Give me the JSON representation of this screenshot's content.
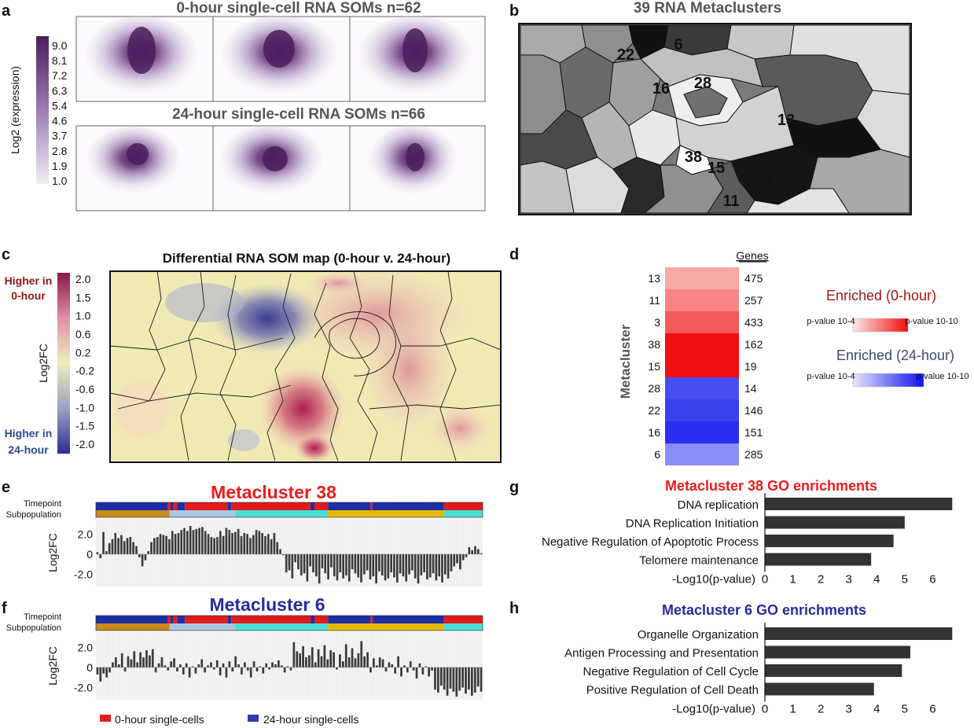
{
  "panels": {
    "a": "a",
    "b": "b",
    "c": "c",
    "d": "d",
    "e": "e",
    "f": "f",
    "g": "g",
    "h": "h"
  },
  "panel_a": {
    "title_top": "0-hour single-cell RNA SOMs n=62",
    "title_bottom": "24-hour single-cell RNA SOMs n=66",
    "scale_label": "Log2 (expression)",
    "scale_ticks": [
      "9.0",
      "8.1",
      "7.2",
      "6.3",
      "5.4",
      "4.6",
      "3.7",
      "2.8",
      "1.9",
      "1.0"
    ],
    "color_high": "#4b1d5e",
    "color_low": "#f2eef6"
  },
  "panel_b": {
    "title": "39 RNA Metaclusters",
    "labels": [
      {
        "text": "22",
        "color": "#2b86c9"
      },
      {
        "text": "6",
        "color": "#2b86c9"
      },
      {
        "text": "16",
        "color": "#2b86c9"
      },
      {
        "text": "28",
        "color": "#2b86c9"
      },
      {
        "text": "13",
        "color": "#e8461e"
      },
      {
        "text": "38",
        "color": "#e8461e"
      },
      {
        "text": "15",
        "color": "#e8461e"
      },
      {
        "text": "3",
        "color": "#e8461e"
      },
      {
        "text": "11",
        "color": "#e8461e"
      }
    ]
  },
  "panel_c": {
    "title": "Differential RNA SOM map (0-hour v. 24-hour)",
    "higher_top_1": "Higher in",
    "higher_top_2": "0-hour",
    "higher_bottom_1": "Higher in",
    "higher_bottom_2": "24-hour",
    "scale_label": "Log2FC",
    "scale_ticks": [
      "2.0",
      "1.5",
      "1.0",
      "0.6",
      "0.2",
      "-0.2",
      "-0.6",
      "-1.0",
      "-1.5",
      "-2.0"
    ],
    "color_top": "#8b1848",
    "color_mid": "#f3ecb8",
    "color_bottom": "#2c2f8e"
  },
  "chart_data": [
    {
      "type": "heatmap",
      "panel": "d",
      "ylabel": "Metacluster",
      "column_header": "Genes",
      "rows": [
        {
          "metacluster": "13",
          "genes": 475,
          "enrichment": "0-hour",
          "color": "#f9a6a6"
        },
        {
          "metacluster": "11",
          "genes": 257,
          "enrichment": "0-hour",
          "color": "#f88585"
        },
        {
          "metacluster": "3",
          "genes": 433,
          "enrichment": "0-hour",
          "color": "#f45a5a"
        },
        {
          "metacluster": "38",
          "genes": 162,
          "enrichment": "0-hour",
          "color": "#f20f0f"
        },
        {
          "metacluster": "15",
          "genes": 19,
          "enrichment": "0-hour",
          "color": "#f20f0f"
        },
        {
          "metacluster": "28",
          "genes": 14,
          "enrichment": "24-hour",
          "color": "#4a4cf2"
        },
        {
          "metacluster": "22",
          "genes": 146,
          "enrichment": "24-hour",
          "color": "#3d40ee"
        },
        {
          "metacluster": "16",
          "genes": 151,
          "enrichment": "24-hour",
          "color": "#2a2ef0"
        },
        {
          "metacluster": "6",
          "genes": 285,
          "enrichment": "24-hour",
          "color": "#8a8cf6"
        }
      ],
      "legend": {
        "enriched_0": "Enriched (0-hour)",
        "enriched_24": "Enriched (24-hour)",
        "pvalue_low": "p-value 10-4",
        "pvalue_high": "p-value 10-10",
        "color_0": "#a01616",
        "color_24": "#3c4a6e"
      }
    },
    {
      "type": "bar",
      "panel": "e",
      "title": "Metacluster 38",
      "title_color": "#ee1c1c",
      "ylabel": "Log2FC",
      "yticks": [
        "2.0",
        "0",
        "-2.0"
      ],
      "ylim": [
        -3.2,
        3.5
      ],
      "track_labels": [
        "Timepoint",
        "Subpopulation"
      ],
      "values": [
        0.2,
        -0.4,
        2.2,
        0.3,
        1.1,
        1.5,
        2.1,
        1.6,
        1.9,
        1.3,
        1.6,
        1.7,
        1.2,
        0.8,
        -0.3,
        -1.2,
        -0.6,
        0.3,
        1.2,
        1.6,
        1.7,
        2.0,
        1.9,
        1.8,
        1.5,
        2.3,
        2.0,
        2.1,
        2.4,
        2.6,
        2.3,
        2.8,
        2.4,
        2.5,
        2.6,
        2.7,
        2.3,
        2.0,
        1.7,
        1.6,
        1.7,
        2.3,
        1.8,
        2.6,
        2.4,
        2.1,
        2.2,
        2.5,
        1.8,
        2.1,
        2.0,
        1.6,
        1.9,
        2.4,
        2.3,
        2.1,
        1.8,
        2.0,
        1.5,
        2.1,
        1.2,
        0.5,
        -0.1,
        -1.8,
        -1.6,
        -2.4,
        -0.8,
        -1.5,
        -2.1,
        -1.9,
        -2.7,
        -1.2,
        -1.8,
        -2.2,
        -2.9,
        -1.4,
        -1.9,
        -2.5,
        -1.3,
        -2.2,
        -2.6,
        -1.8,
        -2.4,
        -2.1,
        -2.7,
        -1.5,
        -1.9,
        -2.3,
        -2.8,
        -2.0,
        -1.6,
        -2.5,
        -2.2,
        -2.9,
        -1.7,
        -2.1,
        -2.6,
        -2.4,
        -1.8,
        -2.3,
        -2.8,
        -1.9,
        -2.2,
        -2.7,
        -2.0,
        -1.6,
        -2.4,
        -2.9,
        -2.1,
        -1.8,
        -2.5,
        -2.3,
        -1.9,
        -2.6,
        -2.2,
        -2.8,
        -2.0,
        -2.4,
        -1.7,
        -1.2,
        -0.9,
        -1.5,
        -0.6,
        -0.3,
        0.7,
        0.4,
        0.8,
        0.5,
        0.1
      ]
    },
    {
      "type": "bar",
      "panel": "f",
      "title": "Metacluster 6",
      "title_color": "#2a2aa0",
      "ylabel": "Log2FC",
      "yticks": [
        "2.0",
        "0",
        "-2.0"
      ],
      "ylim": [
        -3.2,
        3.5
      ],
      "track_labels": [
        "Timepoint",
        "Subpopulation"
      ],
      "values": [
        -0.7,
        -1.4,
        -0.6,
        -1.0,
        -0.5,
        0.5,
        1.0,
        0.3,
        1.4,
        -0.4,
        1.1,
        0.8,
        1.6,
        0.5,
        1.5,
        1.0,
        1.7,
        1.2,
        1.8,
        -0.5,
        0.4,
        1.0,
        0.2,
        -0.3,
        0.6,
        0.9,
        -0.4,
        0.3,
        -0.7,
        0.4,
        -1.0,
        0.1,
        -0.6,
        0.3,
        0.8,
        -0.5,
        0.2,
        0.5,
        -0.2,
        0.7,
        -0.8,
        0.4,
        -1.0,
        0.6,
        -0.4,
        1.1,
        0.3,
        -0.7,
        0.5,
        -0.3,
        -1.0,
        0.6,
        -0.4,
        0.1,
        -0.6,
        0.4,
        -0.2,
        0.5,
        0.3,
        0.7,
        0.2,
        -0.5,
        0.1,
        -0.3,
        2.5,
        1.6,
        1.4,
        2.1,
        1.0,
        1.2,
        2.0,
        0.5,
        1.8,
        1.1,
        2.2,
        0.8,
        1.7,
        1.5,
        -0.2,
        1.3,
        0.6,
        2.3,
        1.0,
        1.9,
        0.9,
        1.4,
        2.6,
        1.1,
        1.5,
        -0.5,
        0.9,
        0.2,
        1.0,
        0.8,
        -0.4,
        0.5,
        0.3,
        -0.6,
        1.1,
        -0.9,
        0.2,
        -0.5,
        0.6,
        -0.3,
        -1.1,
        0.4,
        -0.7,
        0.1,
        -0.9,
        -0.3,
        -2.2,
        -2.5,
        -1.8,
        -2.2,
        -2.8,
        -2.1,
        -2.4,
        -2.9,
        -2.3,
        -2.0,
        -2.6,
        -2.2,
        -2.8,
        -2.5,
        -1.9,
        -2.4
      ]
    },
    {
      "type": "bar",
      "panel": "g",
      "orientation": "horizontal",
      "title": "Metacluster 38 GO enrichments",
      "title_color": "#ee1c1c",
      "categories": [
        "DNA replication",
        "DNA Replication Initiation",
        "Negative Regulation of Apoptotic Process",
        "Telomere maintenance"
      ],
      "values": [
        6.7,
        5.0,
        4.6,
        3.8
      ],
      "xlabel": "-Log10(p-value)",
      "xticks": [
        "0",
        "1",
        "2",
        "3",
        "4",
        "5",
        "6"
      ],
      "xlim": [
        0,
        7.0
      ]
    },
    {
      "type": "bar",
      "panel": "h",
      "orientation": "horizontal",
      "title": "Metacluster 6 GO enrichments",
      "title_color": "#2a2aa0",
      "categories": [
        "Organelle Organization",
        "Antigen Processing and Presentation",
        "Negative Regulation of Cell Cycle",
        "Positive Regulation of Cell Death"
      ],
      "values": [
        6.7,
        5.2,
        4.9,
        3.9
      ],
      "xlabel": "-Log10(p-value)",
      "xticks": [
        "0",
        "1",
        "2",
        "3",
        "4",
        "5",
        "6"
      ],
      "xlim": [
        0,
        7.0
      ]
    }
  ],
  "legend_bottom": [
    {
      "label": "0-hour single-cells",
      "color": "#e31a1c"
    },
    {
      "label": "24-hour single-cells",
      "color": "#2d3ea8"
    }
  ],
  "colors": {
    "bar": "#3a3a3a",
    "hbar": "#333333",
    "grid": "#e6e6e6",
    "timepoint_red": "#e31a1c",
    "timepoint_blue": "#1b2ea8",
    "sub_orange": "#c88a1a",
    "sub_lightblue": "#a8c8e0",
    "sub_cyan": "#46e0d6",
    "sub_gold": "#e3b800"
  }
}
